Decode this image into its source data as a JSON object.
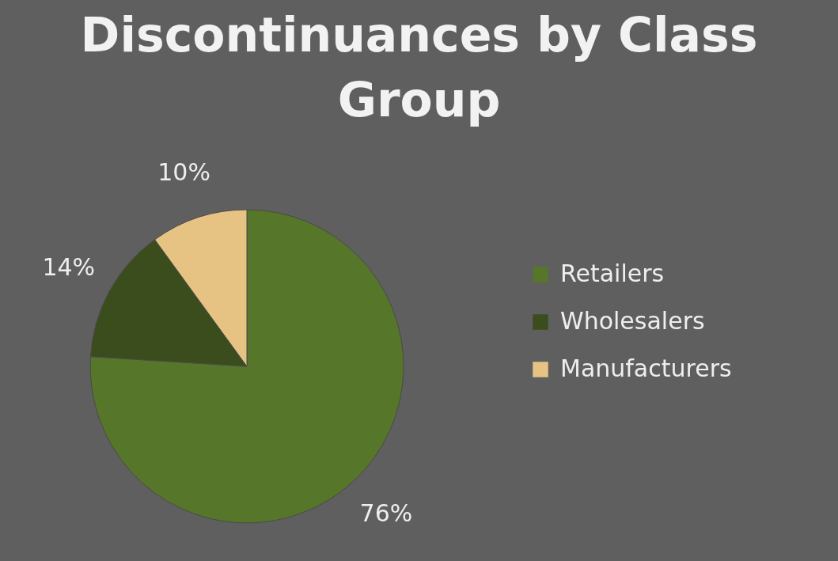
{
  "chart_data": {
    "type": "pie",
    "title": "Discontinuances by Class Group",
    "categories": [
      "Retailers",
      "Wholesalers",
      "Manufacturers"
    ],
    "values": [
      76,
      14,
      10
    ],
    "value_labels": [
      "76%",
      "14%",
      "10%"
    ],
    "colors": [
      "#56762a",
      "#3b4d1d",
      "#e6c383"
    ],
    "legend": "right"
  }
}
